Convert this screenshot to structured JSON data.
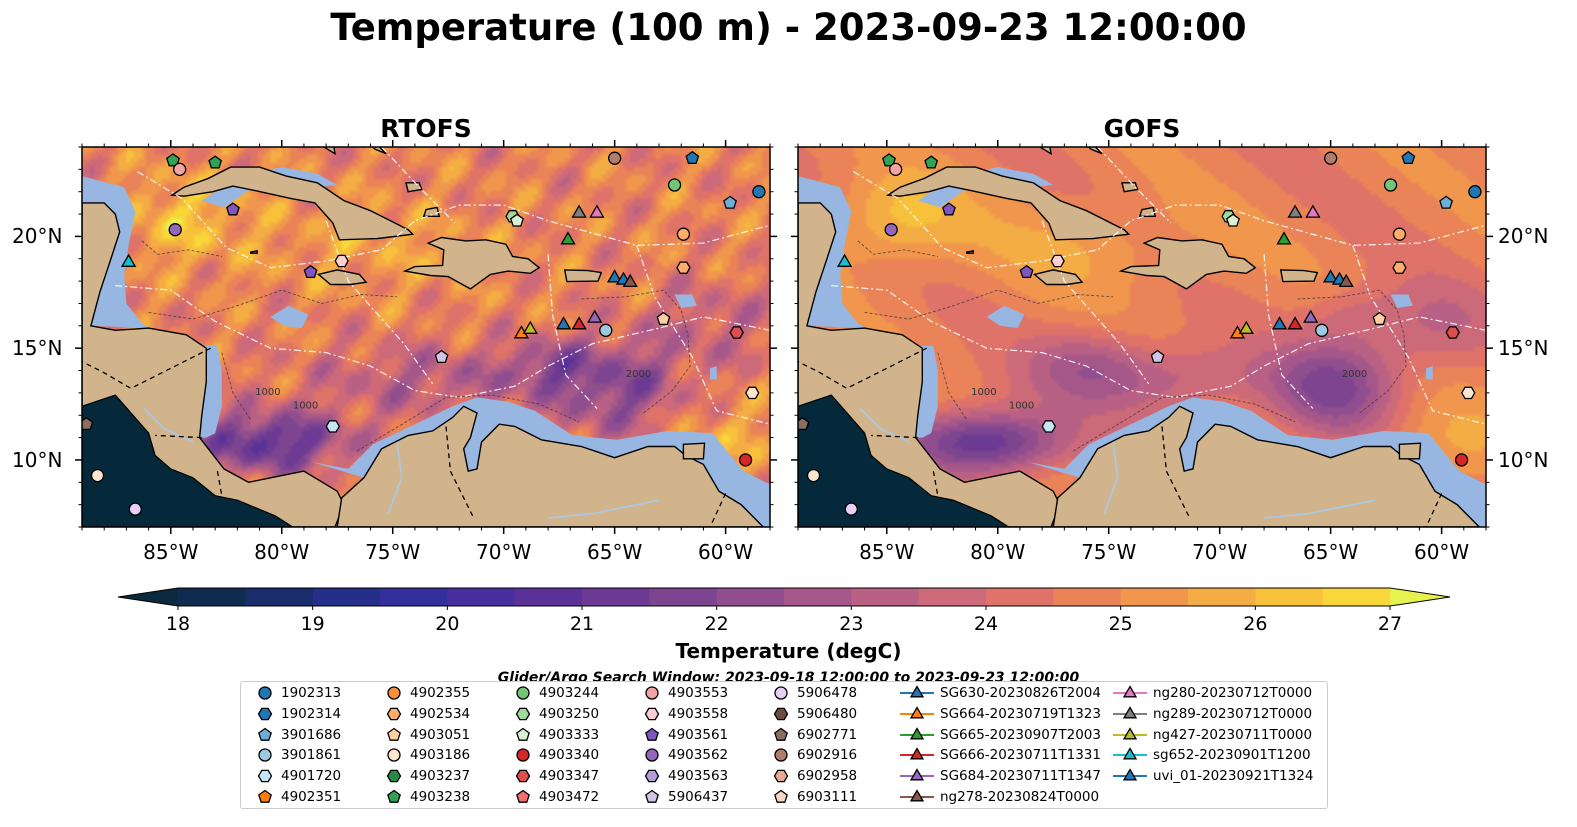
{
  "title": "Temperature (100 m) - 2023-09-23 12:00:00",
  "panels": [
    {
      "title": "RTOFS",
      "variant": "rtofs"
    },
    {
      "title": "GOFS",
      "variant": "gofs"
    }
  ],
  "map": {
    "lon_range": [
      -89,
      -58
    ],
    "lat_range": [
      7,
      24
    ],
    "lat_ticks": [
      {
        "value": 20,
        "label": "20°N"
      },
      {
        "value": 15,
        "label": "15°N"
      },
      {
        "value": 10,
        "label": "10°N"
      }
    ],
    "lon_ticks": [
      {
        "value": -85,
        "label": "85°W"
      },
      {
        "value": -80,
        "label": "80°W"
      },
      {
        "value": -75,
        "label": "75°W"
      },
      {
        "value": -70,
        "label": "70°W"
      },
      {
        "value": -65,
        "label": "65°W"
      },
      {
        "value": -60,
        "label": "60°W"
      }
    ],
    "contour_labels": [
      "1000",
      "1000",
      "2000"
    ],
    "colors": {
      "land": "#d2b48c",
      "shelf": "#97b6e1",
      "pacific": "#06283b",
      "coast": "#000000"
    }
  },
  "colorbar": {
    "label": "Temperature (degC)",
    "min": 18,
    "max": 27,
    "step": 0.5,
    "ticks": [
      "18",
      "19",
      "20",
      "21",
      "22",
      "23",
      "24",
      "25",
      "26",
      "27"
    ],
    "colors": [
      "#0c2a3d",
      "#102b50",
      "#1a2d6b",
      "#252f89",
      "#33309d",
      "#47309e",
      "#593198",
      "#6c3a93",
      "#7d4490",
      "#904e8e",
      "#a5578a",
      "#b96184",
      "#cd6a79",
      "#df7369",
      "#ea8358",
      "#f0974d",
      "#f4ac44",
      "#f7c13c",
      "#f9d73a",
      "#e8f24e"
    ]
  },
  "search_window": "Glider/Argo Search Window: 2023-09-18 12:00:00 to 2023-09-23 12:00:00",
  "legend": [
    {
      "label": "1902313",
      "marker": "circle",
      "color": "#1f77b4"
    },
    {
      "label": "1902314",
      "marker": "hexagon",
      "color": "#1f77b4"
    },
    {
      "label": "3901686",
      "marker": "pentagon",
      "color": "#6baed6"
    },
    {
      "label": "3901861",
      "marker": "circle",
      "color": "#9ecae1"
    },
    {
      "label": "4901720",
      "marker": "hexagon",
      "color": "#c6e6f7"
    },
    {
      "label": "4902351",
      "marker": "pentagon",
      "color": "#ff7f0e"
    },
    {
      "label": "4902355",
      "marker": "circle",
      "color": "#f5913a"
    },
    {
      "label": "4902534",
      "marker": "hexagon",
      "color": "#fdae6b"
    },
    {
      "label": "4903051",
      "marker": "pentagon",
      "color": "#fdd0a2"
    },
    {
      "label": "4903186",
      "marker": "circle",
      "color": "#fee6ce"
    },
    {
      "label": "4903237",
      "marker": "hexagon",
      "color": "#238b45"
    },
    {
      "label": "4903238",
      "marker": "pentagon",
      "color": "#31a354"
    },
    {
      "label": "4903244",
      "marker": "circle",
      "color": "#74c476"
    },
    {
      "label": "4903250",
      "marker": "hexagon",
      "color": "#a1d99b"
    },
    {
      "label": "4903333",
      "marker": "pentagon",
      "color": "#d9f0d3"
    },
    {
      "label": "4903340",
      "marker": "circle",
      "color": "#d62728"
    },
    {
      "label": "4903347",
      "marker": "hexagon",
      "color": "#de4e4e"
    },
    {
      "label": "4903472",
      "marker": "pentagon",
      "color": "#f07070"
    },
    {
      "label": "4903553",
      "marker": "circle",
      "color": "#f4a3a3"
    },
    {
      "label": "4903558",
      "marker": "hexagon",
      "color": "#fcd0d0"
    },
    {
      "label": "4903561",
      "marker": "pentagon",
      "color": "#7e57c2"
    },
    {
      "label": "4903562",
      "marker": "circle",
      "color": "#9467bd"
    },
    {
      "label": "4903563",
      "marker": "hexagon",
      "color": "#b39ddb"
    },
    {
      "label": "5906437",
      "marker": "pentagon",
      "color": "#d1c4e9"
    },
    {
      "label": "5906478",
      "marker": "circle",
      "color": "#e6d0f5"
    },
    {
      "label": "5906480",
      "marker": "hexagon",
      "color": "#6d4c41"
    },
    {
      "label": "6902771",
      "marker": "pentagon",
      "color": "#8c6d62"
    },
    {
      "label": "6902916",
      "marker": "circle",
      "color": "#b07d6b"
    },
    {
      "label": "6902958",
      "marker": "hexagon",
      "color": "#e8a994"
    },
    {
      "label": "6903111",
      "marker": "pentagon",
      "color": "#fbd5c8"
    },
    {
      "label": "SG630-20230826T2004",
      "marker": "triangle-line",
      "color": "#1f77b4"
    },
    {
      "label": "SG664-20230719T1323",
      "marker": "triangle-line",
      "color": "#ff7f0e"
    },
    {
      "label": "SG665-20230907T2003",
      "marker": "triangle-line",
      "color": "#2ca02c"
    },
    {
      "label": "SG666-20230711T1331",
      "marker": "triangle-line",
      "color": "#d62728"
    },
    {
      "label": "SG684-20230711T1347",
      "marker": "triangle-line",
      "color": "#9467bd"
    },
    {
      "label": "ng278-20230824T0000",
      "marker": "triangle-line",
      "color": "#8c564b"
    },
    {
      "label": "ng280-20230712T0000",
      "marker": "triangle-line",
      "color": "#e377c2"
    },
    {
      "label": "ng289-20230712T0000",
      "marker": "triangle-line",
      "color": "#7f7f7f"
    },
    {
      "label": "ng427-20230711T0000",
      "marker": "triangle-line",
      "color": "#bcbd22"
    },
    {
      "label": "sg652-20230901T1200",
      "marker": "triangle-line",
      "color": "#17becf"
    },
    {
      "label": "uvi_01-20230921T1324",
      "marker": "triangle-line",
      "color": "#1f77b4"
    }
  ],
  "observations": [
    {
      "lon": -84.9,
      "lat": 23.4,
      "marker": "pentagon",
      "color": "#31a354"
    },
    {
      "lon": -84.6,
      "lat": 23.0,
      "marker": "circle",
      "color": "#f4a3a3"
    },
    {
      "lon": -83.0,
      "lat": 23.3,
      "marker": "pentagon",
      "color": "#31a354"
    },
    {
      "lon": -82.2,
      "lat": 21.2,
      "marker": "pentagon",
      "color": "#7e57c2"
    },
    {
      "lon": -84.8,
      "lat": 20.3,
      "marker": "circle",
      "color": "#9467bd"
    },
    {
      "lon": -78.7,
      "lat": 18.4,
      "marker": "pentagon",
      "color": "#7e57c2"
    },
    {
      "lon": -77.3,
      "lat": 18.9,
      "marker": "hexagon",
      "color": "#fcd0d0"
    },
    {
      "lon": -69.6,
      "lat": 20.9,
      "marker": "hexagon",
      "color": "#a1d99b"
    },
    {
      "lon": -69.4,
      "lat": 20.7,
      "marker": "pentagon",
      "color": "#d9f0d3"
    },
    {
      "lon": -65.0,
      "lat": 23.5,
      "marker": "circle",
      "color": "#b07d6b"
    },
    {
      "lon": -62.3,
      "lat": 22.3,
      "marker": "circle",
      "color": "#74c476"
    },
    {
      "lon": -61.5,
      "lat": 23.5,
      "marker": "pentagon",
      "color": "#1f77b4"
    },
    {
      "lon": -59.8,
      "lat": 21.5,
      "marker": "pentagon",
      "color": "#6baed6"
    },
    {
      "lon": -58.5,
      "lat": 22.0,
      "marker": "circle",
      "color": "#1f77b4"
    },
    {
      "lon": -61.9,
      "lat": 20.1,
      "marker": "circle",
      "color": "#fdae6b"
    },
    {
      "lon": -61.9,
      "lat": 18.6,
      "marker": "hexagon",
      "color": "#fdae6b"
    },
    {
      "lon": -62.8,
      "lat": 16.3,
      "marker": "pentagon",
      "color": "#fdd0a2"
    },
    {
      "lon": -65.4,
      "lat": 15.8,
      "marker": "circle",
      "color": "#9ecae1"
    },
    {
      "lon": -72.8,
      "lat": 14.6,
      "marker": "pentagon",
      "color": "#d1c4e9"
    },
    {
      "lon": -59.5,
      "lat": 15.7,
      "marker": "hexagon",
      "color": "#de4e4e"
    },
    {
      "lon": -58.8,
      "lat": 13.0,
      "marker": "hexagon",
      "color": "#fee6ce"
    },
    {
      "lon": -59.1,
      "lat": 10.0,
      "marker": "circle",
      "color": "#d62728"
    },
    {
      "lon": -77.7,
      "lat": 11.5,
      "marker": "hexagon",
      "color": "#c6e6f7"
    },
    {
      "lon": -88.8,
      "lat": 11.6,
      "marker": "pentagon",
      "color": "#8c6d62"
    },
    {
      "lon": -88.3,
      "lat": 9.3,
      "marker": "circle",
      "color": "#fee6ce"
    },
    {
      "lon": -86.6,
      "lat": 7.8,
      "marker": "circle",
      "color": "#e6d0f5"
    },
    {
      "lon": -86.9,
      "lat": 18.9,
      "marker": "triangle",
      "color": "#17becf"
    },
    {
      "lon": -66.6,
      "lat": 21.1,
      "marker": "triangle",
      "color": "#7f7f7f"
    },
    {
      "lon": -65.8,
      "lat": 21.1,
      "marker": "triangle",
      "color": "#e377c2"
    },
    {
      "lon": -67.1,
      "lat": 19.9,
      "marker": "triangle",
      "color": "#2ca02c"
    },
    {
      "lon": -65.0,
      "lat": 18.2,
      "marker": "triangle",
      "color": "#1f77b4"
    },
    {
      "lon": -64.6,
      "lat": 18.1,
      "marker": "triangle",
      "color": "#1f77b4"
    },
    {
      "lon": -64.3,
      "lat": 18.0,
      "marker": "triangle",
      "color": "#8c564b"
    },
    {
      "lon": -69.2,
      "lat": 15.7,
      "marker": "triangle",
      "color": "#ff7f0e"
    },
    {
      "lon": -68.8,
      "lat": 15.9,
      "marker": "triangle",
      "color": "#bcbd22"
    },
    {
      "lon": -67.3,
      "lat": 16.1,
      "marker": "triangle",
      "color": "#1f77b4"
    },
    {
      "lon": -66.6,
      "lat": 16.1,
      "marker": "triangle",
      "color": "#d62728"
    },
    {
      "lon": -65.9,
      "lat": 16.4,
      "marker": "triangle",
      "color": "#9467bd"
    }
  ]
}
